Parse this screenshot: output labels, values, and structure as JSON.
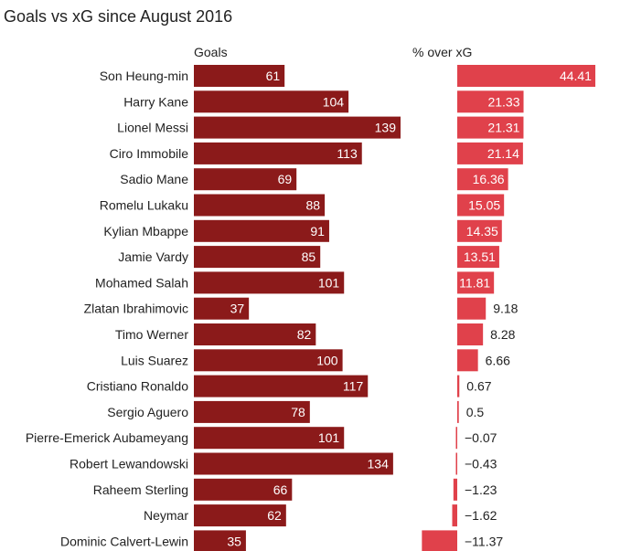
{
  "title": "Goals vs xG since August 2016",
  "colors": {
    "goals_bar": "#8b1a1a",
    "pct_bar": "#e0414b",
    "text": "#222222",
    "bar_label": "#ffffff"
  },
  "chart_data": [
    {
      "type": "bar",
      "orientation": "horizontal",
      "title": "Goals",
      "categories": [
        "Son Heung-min",
        "Harry Kane",
        "Lionel Messi",
        "Ciro Immobile",
        "Sadio Mane",
        "Romelu Lukaku",
        "Kylian Mbappe",
        "Jamie Vardy",
        "Mohamed Salah",
        "Zlatan Ibrahimovic",
        "Timo Werner",
        "Luis Suarez",
        "Cristiano Ronaldo",
        "Sergio Aguero",
        "Pierre-Emerick Aubameyang",
        "Robert Lewandowski",
        "Raheem Sterling",
        "Neymar",
        "Dominic Calvert-Lewin"
      ],
      "values": [
        61,
        104,
        139,
        113,
        69,
        88,
        91,
        85,
        101,
        37,
        82,
        100,
        117,
        78,
        101,
        134,
        66,
        62,
        35
      ],
      "value_labels": [
        "61",
        "104",
        "139",
        "113",
        "69",
        "88",
        "91",
        "85",
        "101",
        "37",
        "82",
        "100",
        "117",
        "78",
        "101",
        "134",
        "66",
        "62",
        "35"
      ],
      "xlim": [
        0,
        160
      ]
    },
    {
      "type": "bar",
      "orientation": "horizontal",
      "title": "% over xG",
      "categories": [
        "Son Heung-min",
        "Harry Kane",
        "Lionel Messi",
        "Ciro Immobile",
        "Sadio Mane",
        "Romelu Lukaku",
        "Kylian Mbappe",
        "Jamie Vardy",
        "Mohamed Salah",
        "Zlatan Ibrahimovic",
        "Timo Werner",
        "Luis Suarez",
        "Cristiano Ronaldo",
        "Sergio Aguero",
        "Pierre-Emerick Aubameyang",
        "Robert Lewandowski",
        "Raheem Sterling",
        "Neymar",
        "Dominic Calvert-Lewin"
      ],
      "values": [
        44.41,
        21.33,
        21.31,
        21.14,
        16.36,
        15.05,
        14.35,
        13.51,
        11.81,
        9.18,
        8.28,
        6.66,
        0.67,
        0.5,
        -0.07,
        -0.43,
        -1.23,
        -1.62,
        -11.37
      ],
      "value_labels": [
        "44.41",
        "21.33",
        "21.31",
        "21.14",
        "16.36",
        "15.05",
        "14.35",
        "13.51",
        "11.81",
        "9.18",
        "8.28",
        "6.66",
        "0.67",
        "0.5",
        "−0.07",
        "−0.43",
        "−1.23",
        "−1.62",
        "−11.37"
      ],
      "xlim": [
        -12,
        45
      ]
    }
  ]
}
